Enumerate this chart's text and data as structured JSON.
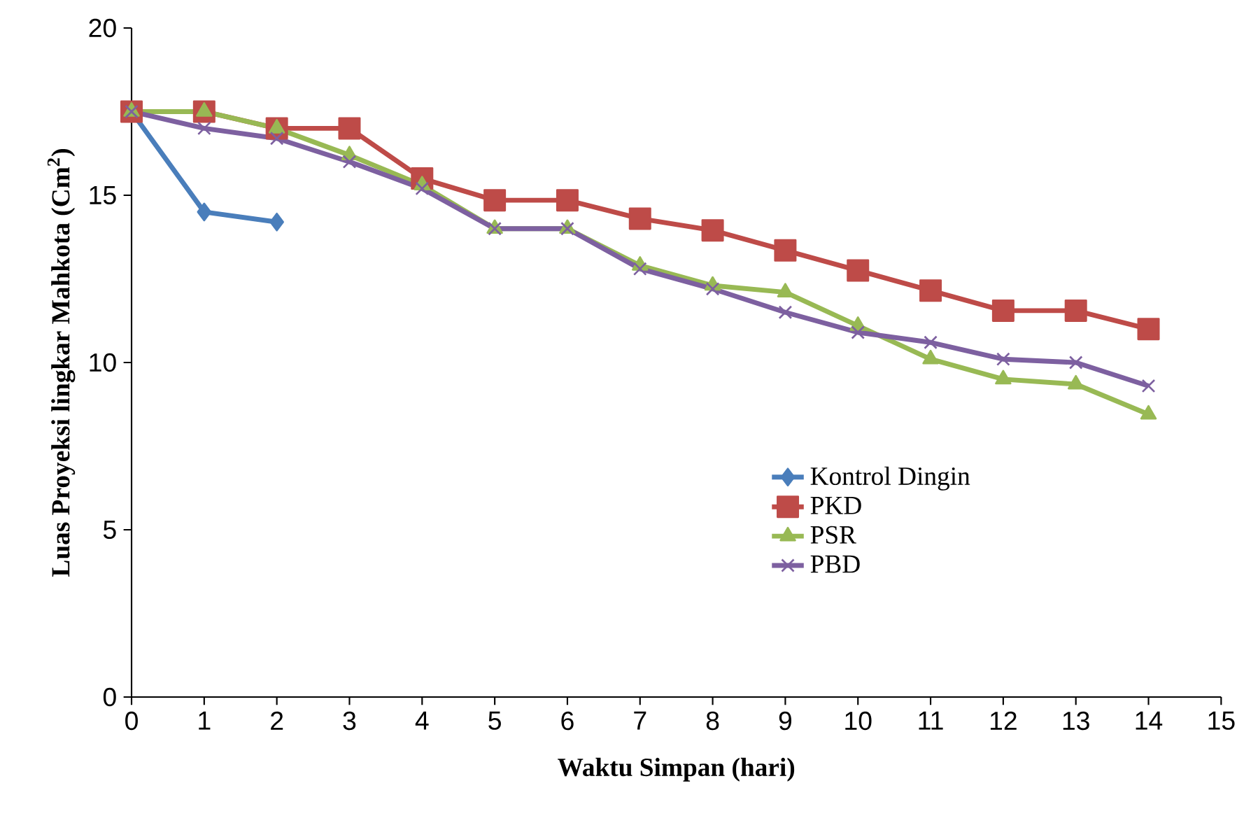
{
  "chart_data": {
    "type": "line",
    "xlabel": "Waktu Simpan (hari)",
    "ylabel": "Luas Proyeksi lingkar Mahkota (Cm$^{2}$)",
    "x": [
      0,
      1,
      2,
      3,
      4,
      5,
      6,
      7,
      8,
      9,
      10,
      11,
      12,
      13,
      14
    ],
    "xlim": [
      0,
      15
    ],
    "xticks": [
      0,
      1,
      2,
      3,
      4,
      5,
      6,
      7,
      8,
      9,
      10,
      11,
      12,
      13,
      14,
      15
    ],
    "ylim": [
      0,
      20
    ],
    "yticks": [
      0,
      5,
      10,
      15,
      20
    ],
    "legend": "right",
    "grid": false,
    "series": [
      {
        "name": "Kontrol Dingin",
        "color": "#4a7ebb",
        "marker": "diamond",
        "values": [
          17.5,
          14.5,
          14.2,
          null,
          null,
          null,
          null,
          null,
          null,
          null,
          null,
          null,
          null,
          null,
          null
        ]
      },
      {
        "name": "PKD",
        "color": "#be4b48",
        "marker": "square",
        "values": [
          17.5,
          17.5,
          17.0,
          17.0,
          15.5,
          14.85,
          14.85,
          14.3,
          13.95,
          13.35,
          12.75,
          12.15,
          11.55,
          11.55,
          11.0
        ]
      },
      {
        "name": "PSR",
        "color": "#98b954",
        "marker": "triangle",
        "values": [
          17.5,
          17.5,
          17.0,
          16.2,
          15.3,
          14.0,
          14.0,
          12.9,
          12.3,
          12.1,
          11.1,
          10.1,
          9.5,
          9.35,
          8.45
        ]
      },
      {
        "name": "PBD",
        "color": "#7d60a0",
        "marker": "cross",
        "values": [
          17.5,
          17.0,
          16.7,
          16.0,
          15.2,
          14.0,
          14.0,
          12.8,
          12.2,
          11.5,
          10.9,
          10.6,
          10.1,
          10.0,
          9.3
        ]
      }
    ]
  }
}
